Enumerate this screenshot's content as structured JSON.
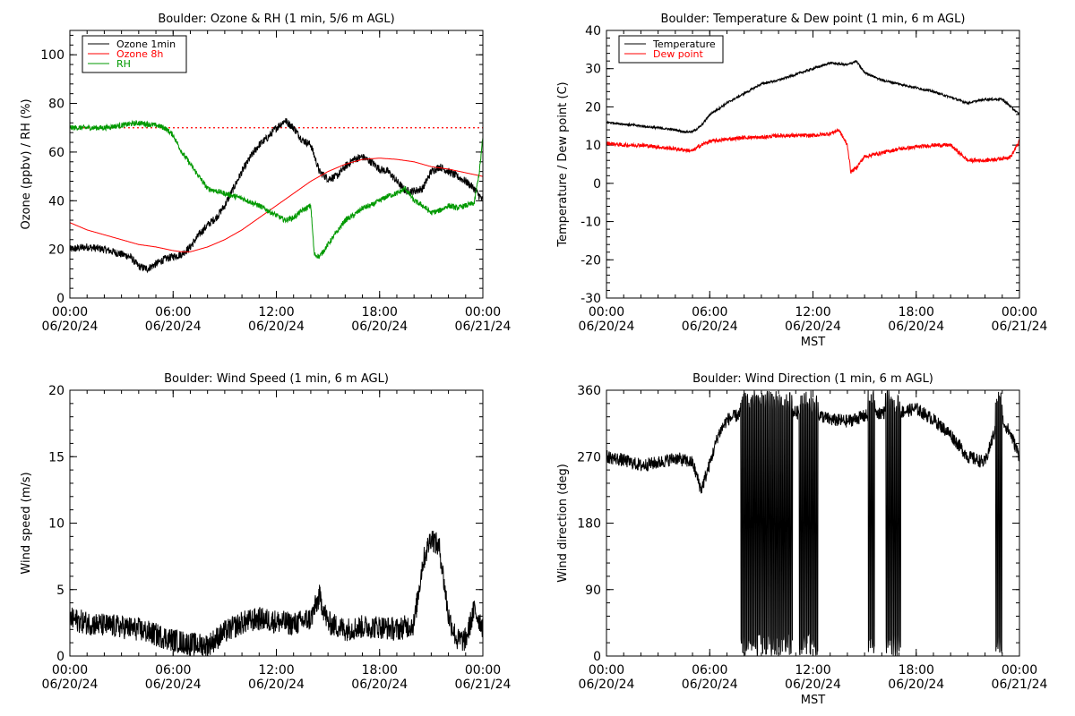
{
  "chart_data": [
    {
      "type": "line",
      "title": "Boulder: Ozone & RH (1 min, 5/6 m AGL)",
      "ylabel": "Ozone (ppbv) / RH (%)",
      "xlabel": "",
      "ylim": [
        0,
        110
      ],
      "yticks": [
        0,
        20,
        40,
        60,
        80,
        100
      ],
      "x_ticks": [
        "00:00|06/20/24",
        "06:00|06/20/24",
        "12:00|06/20/24",
        "18:00|06/20/24",
        "00:00|06/21/24"
      ],
      "x_hours": [
        0,
        6,
        12,
        18,
        24
      ],
      "legend": "top-left",
      "reference_line": {
        "value": 70,
        "color": "#ff0000",
        "style": "dotted"
      },
      "series": [
        {
          "name": "Ozone 1min",
          "color": "#000000",
          "noise": 1.6,
          "x": [
            0,
            1,
            2,
            3,
            3.5,
            4,
            4.5,
            5,
            5.5,
            6,
            6.5,
            7,
            7.5,
            8,
            8.5,
            9,
            9.5,
            10,
            10.5,
            11,
            11.5,
            12,
            12.5,
            13,
            13.5,
            14,
            14.5,
            15,
            15.5,
            16,
            16.5,
            17,
            17.5,
            18,
            18.5,
            19,
            19.5,
            20,
            20.5,
            21,
            21.5,
            22,
            22.5,
            23,
            23.5,
            24
          ],
          "values": [
            20,
            21,
            20,
            18,
            17,
            13,
            12,
            14,
            16,
            17,
            18,
            21,
            26,
            30,
            33,
            38,
            45,
            52,
            58,
            63,
            66,
            70,
            73,
            70,
            65,
            63,
            52,
            49,
            50,
            54,
            57,
            58,
            56,
            53,
            52,
            48,
            44,
            44,
            45,
            52,
            54,
            52,
            50,
            48,
            45,
            40
          ]
        },
        {
          "name": "Ozone 8h",
          "color": "#ff0000",
          "noise": 0,
          "x": [
            0,
            1,
            2,
            3,
            4,
            5,
            6,
            6.5,
            7,
            8,
            9,
            10,
            11,
            12,
            13,
            14,
            15,
            16,
            17,
            18,
            19,
            20,
            21,
            22,
            23,
            24
          ],
          "values": [
            31,
            28,
            26,
            24,
            22,
            21,
            19.5,
            19,
            19,
            21,
            24,
            28,
            33,
            38,
            43,
            48,
            52,
            55,
            57,
            57.5,
            57,
            56,
            54,
            53,
            51.5,
            50
          ]
        },
        {
          "name": "RH",
          "color": "#009900",
          "noise": 1.1,
          "x": [
            0,
            1,
            2,
            3,
            4,
            5,
            5.5,
            6,
            6.5,
            7,
            7.5,
            8,
            9,
            10,
            11,
            12,
            12.5,
            13,
            13.5,
            14,
            14.2,
            14.5,
            15,
            15.5,
            16,
            16.5,
            17,
            17.5,
            18,
            18.5,
            19,
            19.5,
            20,
            20.5,
            21,
            21.5,
            22,
            22.5,
            23,
            23.5,
            23.8,
            24
          ],
          "values": [
            70,
            70,
            70,
            71,
            72,
            71,
            70,
            67,
            60,
            55,
            50,
            45,
            43,
            41,
            38,
            34,
            32,
            33,
            36,
            38,
            18,
            17,
            22,
            27,
            32,
            34,
            37,
            38,
            40,
            42,
            43,
            45,
            40,
            38,
            35,
            36,
            38,
            37,
            38,
            39,
            52,
            66
          ]
        }
      ]
    },
    {
      "type": "line",
      "title": "Boulder: Temperature & Dew point (1 min, 6 m AGL)",
      "ylabel": "Temperature / Dew point (C)",
      "xlabel": "MST",
      "ylim": [
        -30,
        40
      ],
      "yticks": [
        -30,
        -20,
        -10,
        0,
        10,
        20,
        30,
        40
      ],
      "x_ticks": [
        "00:00|06/20/24",
        "06:00|06/20/24",
        "12:00|06/20/24",
        "18:00|06/20/24",
        "00:00|06/21/24"
      ],
      "x_hours": [
        0,
        6,
        12,
        18,
        24
      ],
      "legend": "top-left",
      "series": [
        {
          "name": "Temperature",
          "color": "#000000",
          "noise": 0.3,
          "x": [
            0,
            1,
            2,
            3,
            4,
            4.5,
            5,
            5.5,
            6,
            7,
            8,
            9,
            10,
            11,
            12,
            13,
            14,
            14.5,
            15,
            16,
            17,
            18,
            19,
            20,
            21,
            22,
            23,
            24
          ],
          "values": [
            16,
            15.5,
            15,
            14.5,
            14,
            13.5,
            13.5,
            15,
            18,
            21,
            23.5,
            26,
            27,
            28.5,
            30,
            31.5,
            31,
            32,
            29,
            27,
            26,
            25,
            24,
            22.5,
            21,
            22,
            22,
            18
          ]
        },
        {
          "name": "Dew point",
          "color": "#ff0000",
          "noise": 0.5,
          "x": [
            0,
            1,
            2,
            3,
            4,
            5,
            5.5,
            6,
            7,
            8,
            9,
            10,
            11,
            12,
            13,
            13.5,
            14,
            14.2,
            14.5,
            15,
            16,
            17,
            18,
            19,
            20,
            20.5,
            21,
            22,
            23,
            23.5,
            24
          ],
          "values": [
            10.5,
            10,
            10,
            9.5,
            9,
            8.5,
            10,
            11,
            11.5,
            12,
            12,
            12.5,
            12.5,
            12.5,
            13,
            14,
            10,
            3,
            4,
            7,
            8,
            9,
            9.5,
            10,
            10,
            8,
            6,
            6,
            6.5,
            7,
            11
          ]
        }
      ]
    },
    {
      "type": "line",
      "title": "Boulder: Wind Speed (1 min, 6 m AGL)",
      "ylabel": "Wind speed (m/s)",
      "xlabel": "",
      "ylim": [
        0,
        20
      ],
      "yticks": [
        0,
        5,
        10,
        15,
        20
      ],
      "x_ticks": [
        "00:00|06/20/24",
        "06:00|06/20/24",
        "12:00|06/20/24",
        "18:00|06/20/24",
        "00:00|06/21/24"
      ],
      "x_hours": [
        0,
        6,
        12,
        18,
        24
      ],
      "series": [
        {
          "name": "",
          "color": "#000000",
          "noise": 0.9,
          "x": [
            0,
            1,
            2,
            3,
            4,
            5,
            6,
            7,
            8,
            9,
            10,
            11,
            12,
            13,
            14,
            14.5,
            15,
            16,
            17,
            18,
            19,
            20,
            20.5,
            21,
            21.5,
            22,
            22.5,
            23,
            23.5,
            24
          ],
          "values": [
            2.8,
            2.5,
            2.3,
            2.2,
            2.0,
            1.6,
            1.2,
            0.9,
            0.8,
            1.8,
            2.5,
            2.8,
            2.6,
            2.4,
            2.8,
            4.5,
            2.5,
            2.0,
            2.2,
            2.2,
            2.0,
            2.4,
            7,
            9,
            8,
            3,
            1.2,
            1.2,
            3.5,
            2.2
          ]
        }
      ]
    },
    {
      "type": "line",
      "title": "Boulder: Wind Direction (1 min, 6 m AGL)",
      "ylabel": "Wind direction (deg)",
      "xlabel": "MST",
      "ylim": [
        0,
        360
      ],
      "yticks": [
        0,
        90,
        180,
        270,
        360
      ],
      "x_ticks": [
        "00:00|06/20/24",
        "06:00|06/20/24",
        "12:00|06/20/24",
        "18:00|06/20/24",
        "00:00|06/21/24"
      ],
      "x_hours": [
        0,
        6,
        12,
        18,
        24
      ],
      "series": [
        {
          "name": "",
          "color": "#000000",
          "noise": 9,
          "x": [
            0,
            1,
            2,
            3,
            4,
            5,
            5.5,
            6,
            6.5,
            7,
            8,
            9,
            10,
            11,
            12,
            13,
            14,
            15,
            16,
            17,
            18,
            19,
            20,
            21,
            22,
            22.5,
            23,
            23.5,
            24
          ],
          "values": [
            270,
            265,
            258,
            262,
            268,
            262,
            225,
            260,
            300,
            320,
            330,
            335,
            335,
            330,
            330,
            320,
            318,
            325,
            330,
            330,
            335,
            320,
            300,
            270,
            262,
            300,
            320,
            300,
            270
          ],
          "wrap_spans": [
            [
              7.8,
              10.8
            ],
            [
              11.2,
              12.3
            ],
            [
              15.2,
              15.6
            ],
            [
              16.2,
              17.1
            ],
            [
              22.6,
              23.0
            ]
          ]
        }
      ]
    }
  ]
}
